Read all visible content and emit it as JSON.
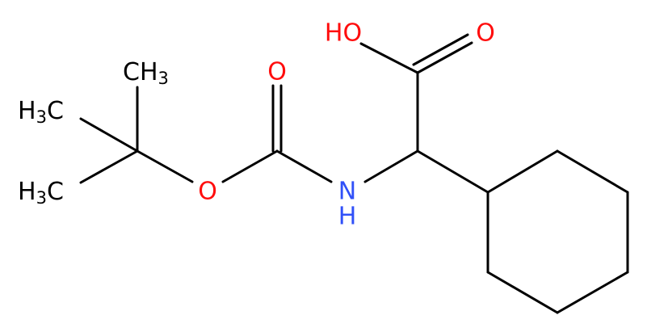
{
  "atoms": [
    {
      "text": "HO"
    },
    {
      "text": "O"
    },
    {
      "text": "O"
    },
    {
      "text": "O"
    },
    {
      "text": "N",
      "sub_text": "H"
    },
    {
      "text": "CH",
      "sub": "3"
    },
    {
      "pre": "H",
      "sub": "3",
      "text": "C"
    },
    {
      "pre": "H",
      "sub": "3",
      "text": "C"
    }
  ]
}
